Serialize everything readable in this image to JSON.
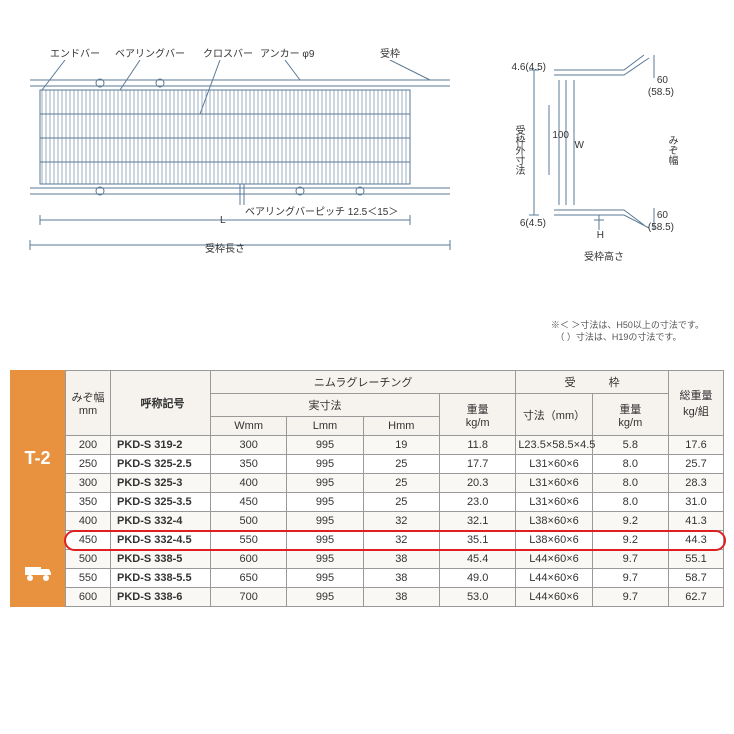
{
  "diagram": {
    "labels": {
      "endbar": "エンドバー",
      "bearingbar": "ベアリングバー",
      "crossbar": "クロスバー",
      "anchor": "アンカー φ9",
      "frame": "受枠",
      "bearing_pitch": "ベアリングバーピッチ 12.5＜15＞",
      "L": "L",
      "frame_length": "受枠長さ",
      "frame_outer": "受枠外寸法",
      "mizo_width": "みぞ幅",
      "W": "W",
      "H": "H",
      "frame_height": "受枠高さ",
      "d1": "4.6(4.5)",
      "d2": "6(4.5)",
      "d3": "100",
      "d4": "60",
      "d5": "(58.5)"
    },
    "note1": "※＜ ＞寸法は、H50以上の寸法です。",
    "note2": "　（ ）寸法は、H19の寸法です。",
    "stroke_color": "#5a7a95"
  },
  "badge": {
    "label": "T-2",
    "bg": "#e8913f"
  },
  "table": {
    "headers": {
      "mizo": "みぞ幅\nmm",
      "code": "呼称記号",
      "nimura": "ニムラグレーチング",
      "actual": "実寸法",
      "W": "Wmm",
      "L": "Lmm",
      "H": "Hmm",
      "weight": "重量\nkg/m",
      "frame_group": "受　　　枠",
      "frame_dim": "寸法（mm）",
      "frame_wt": "重量\nkg/m",
      "total": "総重量\nkg/組"
    },
    "rows": [
      {
        "mizo": "200",
        "code": "PKD-S 319-2",
        "w": "300",
        "l": "995",
        "h": "19",
        "wt": "11.8",
        "frame": "L23.5×58.5×4.5",
        "fwt": "5.8",
        "total": "17.6"
      },
      {
        "mizo": "250",
        "code": "PKD-S 325-2.5",
        "w": "350",
        "l": "995",
        "h": "25",
        "wt": "17.7",
        "frame": "L31×60×6",
        "fwt": "8.0",
        "total": "25.7"
      },
      {
        "mizo": "300",
        "code": "PKD-S 325-3",
        "w": "400",
        "l": "995",
        "h": "25",
        "wt": "20.3",
        "frame": "L31×60×6",
        "fwt": "8.0",
        "total": "28.3"
      },
      {
        "mizo": "350",
        "code": "PKD-S 325-3.5",
        "w": "450",
        "l": "995",
        "h": "25",
        "wt": "23.0",
        "frame": "L31×60×6",
        "fwt": "8.0",
        "total": "31.0"
      },
      {
        "mizo": "400",
        "code": "PKD-S 332-4",
        "w": "500",
        "l": "995",
        "h": "32",
        "wt": "32.1",
        "frame": "L38×60×6",
        "fwt": "9.2",
        "total": "41.3"
      },
      {
        "mizo": "450",
        "code": "PKD-S 332-4.5",
        "w": "550",
        "l": "995",
        "h": "32",
        "wt": "35.1",
        "frame": "L38×60×6",
        "fwt": "9.2",
        "total": "44.3"
      },
      {
        "mizo": "500",
        "code": "PKD-S 338-5",
        "w": "600",
        "l": "995",
        "h": "38",
        "wt": "45.4",
        "frame": "L44×60×6",
        "fwt": "9.7",
        "total": "55.1"
      },
      {
        "mizo": "550",
        "code": "PKD-S 338-5.5",
        "w": "650",
        "l": "995",
        "h": "38",
        "wt": "49.0",
        "frame": "L44×60×6",
        "fwt": "9.7",
        "total": "58.7"
      },
      {
        "mizo": "600",
        "code": "PKD-S 338-6",
        "w": "700",
        "l": "995",
        "h": "38",
        "wt": "53.0",
        "frame": "L44×60×6",
        "fwt": "9.7",
        "total": "62.7"
      }
    ],
    "highlighted_row_index": 5,
    "highlight_color": "#e02020"
  }
}
